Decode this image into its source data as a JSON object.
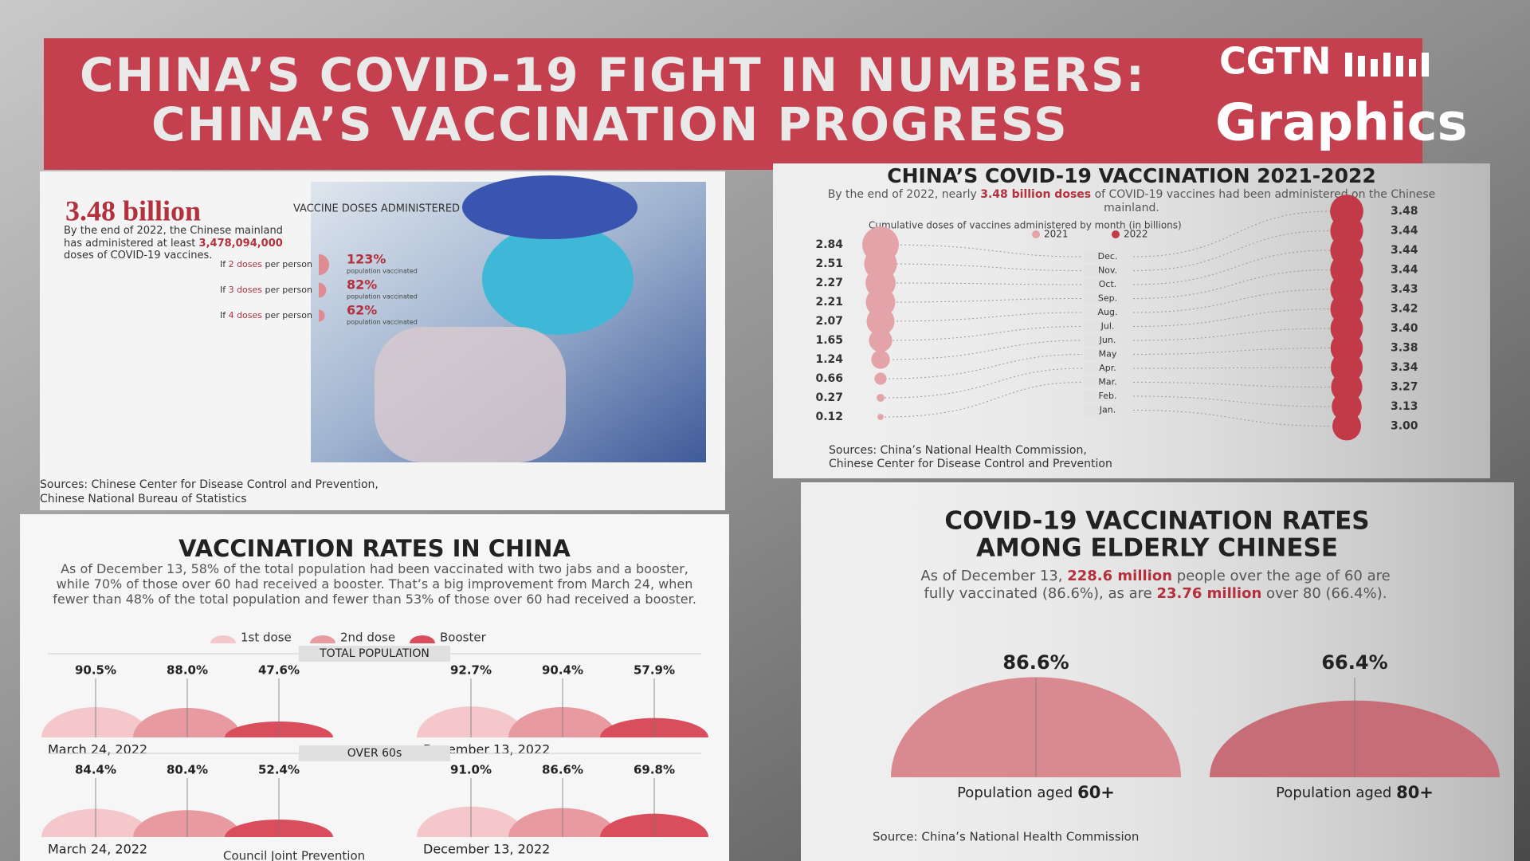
{
  "header": {
    "title_lines": [
      "CHINA’S COVID-19 FIGHT IN NUMBERS:",
      "CHINA’S VACCINATION PROGRESS"
    ]
  },
  "logo": {
    "brand": "CGTN",
    "product": "Graphics"
  },
  "doses_panel": {
    "headline": "3.48 billion",
    "headline_label": "VACCINE DOSES ADMINISTERED",
    "body": [
      {
        "text": "By the end of 2022, the Chinese mainland has administered at least ",
        "em": false
      },
      {
        "text": "3,478,094,000",
        "em": true
      },
      {
        "text": " doses of COVID-19 vaccines.",
        "em": false
      }
    ],
    "scenarios": [
      {
        "prefix": "If ",
        "doses": "2 doses",
        "suffix": " per person",
        "rate": {
          "value": 123,
          "label": "123%"
        },
        "caption": "population vaccinated"
      },
      {
        "prefix": "If ",
        "doses": "3 doses",
        "suffix": " per person",
        "rate": {
          "value": 82,
          "label": "82%"
        },
        "caption": "population vaccinated"
      },
      {
        "prefix": "If ",
        "doses": "4 doses",
        "suffix": " per person",
        "rate": {
          "value": 62,
          "label": "62%"
        },
        "caption": "population vaccinated"
      }
    ],
    "source": [
      "Sources: Chinese Center for Disease Control and Prevention,",
      "Chinese National Bureau of Statistics"
    ]
  },
  "monthly_chart": {
    "title": "CHINA’S COVID-19 VACCINATION 2021-2022",
    "subtitle": [
      {
        "text": "By the end of 2022, nearly ",
        "em": false
      },
      {
        "text": "3.48 billion doses",
        "em": true
      },
      {
        "text": " of COVID-19 vaccines had been administered on the Chinese mainland.",
        "em": false
      }
    ],
    "note": "Cumulative doses of vaccines administered by month (in billions)",
    "legend": [
      {
        "name": "2021",
        "color": "#e3a3a8"
      },
      {
        "name": "2022",
        "color": "#c23a48"
      }
    ],
    "months": [
      "Dec.",
      "Nov.",
      "Oct.",
      "Sep.",
      "Aug.",
      "Jul.",
      "Jun.",
      "May",
      "Apr.",
      "Mar.",
      "Feb.",
      "Jan."
    ],
    "values_2021": [
      2.84,
      2.51,
      2.27,
      2.21,
      2.07,
      1.65,
      1.24,
      0.66,
      0.27,
      0.12,
      null,
      null
    ],
    "values_2022": [
      3.48,
      3.44,
      3.44,
      3.44,
      3.43,
      3.42,
      {
        "value": 3.4,
        "label": "3.40"
      },
      3.38,
      3.34,
      3.27,
      3.13,
      {
        "value": 3,
        "label": "3.00"
      }
    ],
    "source": [
      "Sources: China’s National Health Commission,",
      "Chinese Center for Disease Control and Prevention"
    ]
  },
  "rates_panel": {
    "title": "VACCINATION RATES IN CHINA",
    "body": "As of December 13, 58% of the total population had been vaccinated with two jabs and a booster, while 70% of those over 60 had received a booster. That’s a big improvement from March 24, when fewer than 48% of the total population and fewer than 53% of those over 60 had received a booster.",
    "legend": [
      {
        "name": "1st dose",
        "color": "#f4c7cb"
      },
      {
        "name": "2nd dose",
        "color": "#e89aa1"
      },
      {
        "name": "Booster",
        "color": "#d94d5c"
      }
    ],
    "groups": [
      {
        "label": "TOTAL POPULATION",
        "dates": [
          {
            "date": "March 24, 2022",
            "values": [
              {
                "value": 90.5,
                "label": "90.5%"
              },
              {
                "value": 88,
                "label": "88.0%"
              },
              {
                "value": 47.6,
                "label": "47.6%"
              }
            ]
          },
          {
            "date": "December 13, 2022",
            "values": [
              {
                "value": 92.7,
                "label": "92.7%"
              },
              {
                "value": 90.4,
                "label": "90.4%"
              },
              {
                "value": 57.9,
                "label": "57.9%"
              }
            ]
          }
        ]
      },
      {
        "label": "OVER 60s",
        "dates": [
          {
            "date": "March 24, 2022",
            "values": [
              {
                "value": 84.4,
                "label": "84.4%"
              },
              {
                "value": 80.4,
                "label": "80.4%"
              },
              {
                "value": 52.4,
                "label": "52.4%"
              }
            ]
          },
          {
            "date": "December 13, 2022",
            "values": [
              {
                "value": 91,
                "label": "91.0%"
              },
              {
                "value": 86.6,
                "label": "86.6%"
              },
              {
                "value": 69.8,
                "label": "69.8%"
              }
            ]
          }
        ]
      }
    ],
    "source": "Council Joint Prevention"
  },
  "elderly_panel": {
    "title_lines": [
      "COVID-19 VACCINATION RATES",
      "AMONG ELDERLY CHINESE"
    ],
    "body": [
      {
        "text": "As of December 13, ",
        "em": false
      },
      {
        "text": "228.6 million",
        "em": true
      },
      {
        "text": " people over the age of 60 are fully vaccinated (86.6%), as are ",
        "em": false
      },
      {
        "text": "23.76 million",
        "em": true
      },
      {
        "text": " over 80 (66.4%).",
        "em": false
      }
    ],
    "bars": [
      {
        "rate": {
          "value": 86.6,
          "label": "86.6%"
        },
        "caption": "Population aged ",
        "group": "60+",
        "color": "#d98990"
      },
      {
        "rate": {
          "value": 66.4,
          "label": "66.4%"
        },
        "caption": "Population aged ",
        "group": "80+",
        "color": "#c66d77"
      }
    ],
    "source": "Source: China’s National Health Commission"
  }
}
